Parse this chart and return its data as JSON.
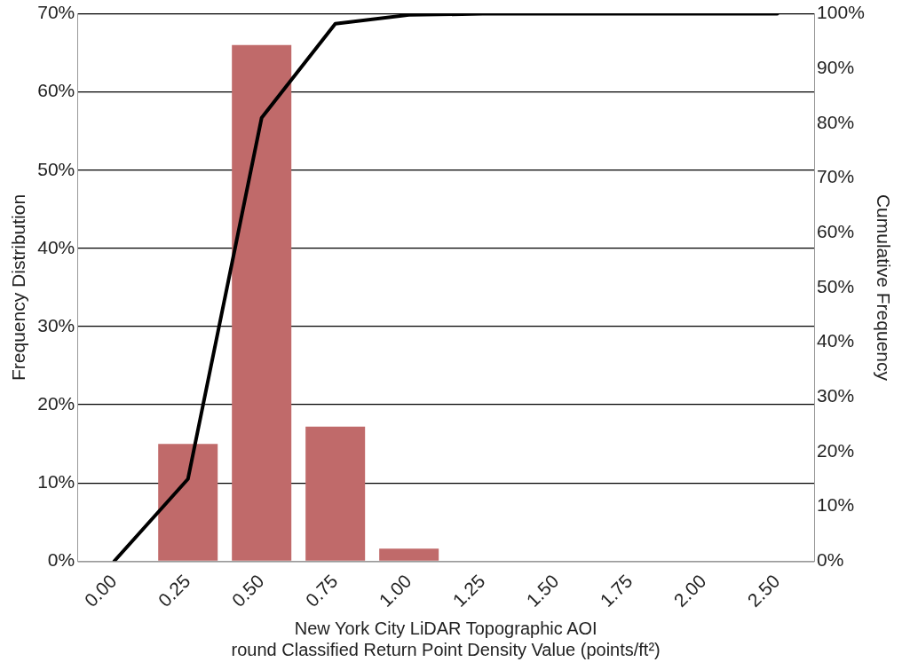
{
  "chart_data": {
    "type": "bar",
    "xlabel": "New York City LiDAR Topographic AOI\nround Classified Return Point Density Value (points/ft²)",
    "ylabel": "Frequency Distribution",
    "y2label": "Cumulative Frequency",
    "categories": [
      "0.00",
      "0.25",
      "0.50",
      "0.75",
      "1.00",
      "1.25",
      "1.50",
      "1.75",
      "2.00",
      "2.50"
    ],
    "series": [
      {
        "color": "#c06a6a",
        "values": [
          0,
          15,
          66,
          17.2,
          1.6,
          0,
          0,
          0,
          0,
          0
        ]
      },
      {
        "type": "line",
        "axis": "y2",
        "color": "#000000",
        "values": [
          0,
          15,
          81,
          98.2,
          99.8,
          100,
          100,
          100,
          100,
          100
        ]
      }
    ],
    "ylim": [
      0,
      70
    ],
    "yticks": [
      {
        "value": 0,
        "label": "0%"
      },
      {
        "value": 10,
        "label": "10%"
      },
      {
        "value": 20,
        "label": "20%"
      },
      {
        "value": 30,
        "label": "30%"
      },
      {
        "value": 40,
        "label": "40%"
      },
      {
        "value": 50,
        "label": "50%"
      },
      {
        "value": 60,
        "label": "60%"
      },
      {
        "value": 70,
        "label": "70%"
      }
    ],
    "y2lim": [
      0,
      100
    ],
    "y2ticks": [
      {
        "value": 0,
        "label": "0%"
      },
      {
        "value": 10,
        "label": "10%"
      },
      {
        "value": 20,
        "label": "20%"
      },
      {
        "value": 30,
        "label": "30%"
      },
      {
        "value": 40,
        "label": "40%"
      },
      {
        "value": 50,
        "label": "50%"
      },
      {
        "value": 60,
        "label": "60%"
      },
      {
        "value": 70,
        "label": "70%"
      },
      {
        "value": 80,
        "label": "80%"
      },
      {
        "value": 90,
        "label": "90%"
      },
      {
        "value": 100,
        "label": "100%"
      }
    ],
    "grid": "y",
    "legend": false,
    "marker": "none",
    "line_style": "solid"
  }
}
